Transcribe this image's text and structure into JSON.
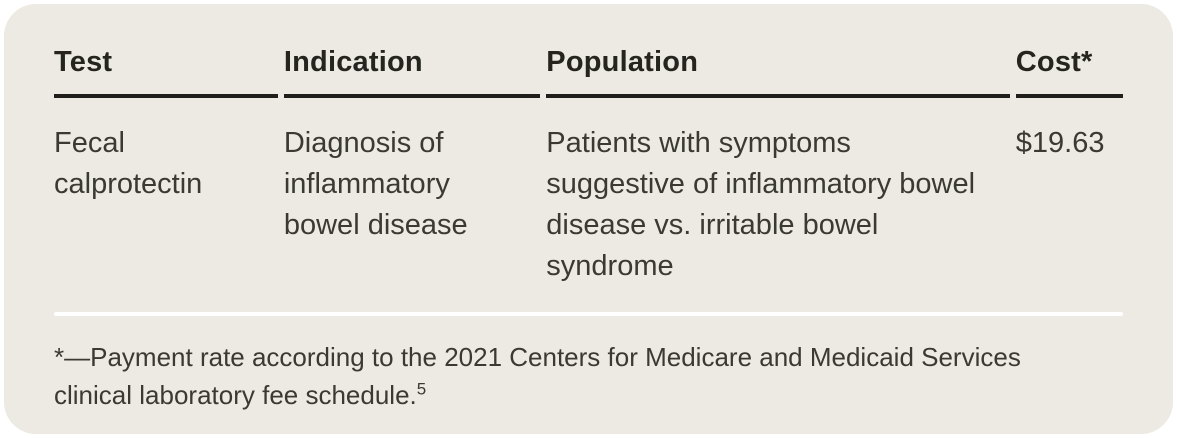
{
  "card": {
    "colors": {
      "background": "#eceae2",
      "header_text": "#26241f",
      "body_text": "#3b3933",
      "header_rule": "#201e1b",
      "divider": "#ffffff",
      "page_background": "#ffffff"
    }
  },
  "table": {
    "columns": [
      {
        "label": "Test"
      },
      {
        "label": "Indication"
      },
      {
        "label": "Population"
      },
      {
        "label": "Cost*"
      }
    ],
    "rows": [
      {
        "test": "Fecal calprotectin",
        "indication": "Diagnosis of inflammatory bowel disease",
        "population": "Patients with symptoms suggestive of inflammatory bowel disease vs. irritable bowel syndrome",
        "cost": "$19.63"
      }
    ]
  },
  "footnote": {
    "text": "*—Payment rate according to the 2021 Centers for Medicare and Medicaid Ser­vices clinical laboratory fee schedule.",
    "reference_superscript": "5"
  }
}
